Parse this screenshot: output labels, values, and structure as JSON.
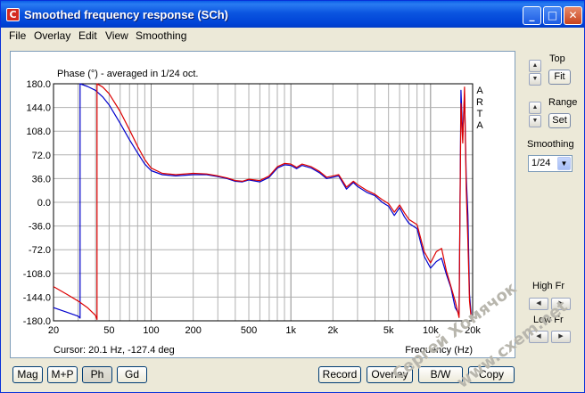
{
  "window": {
    "title": "Smoothed frequency response (SCh)",
    "icon_letter": "C",
    "minimize_glyph": "_",
    "maximize_glyph": "□",
    "close_glyph": "✕"
  },
  "menu": [
    "File",
    "Overlay",
    "Edit",
    "View",
    "Smoothing"
  ],
  "side_panel": {
    "top_label": "Top",
    "fit_button": "Fit",
    "range_label": "Range",
    "set_button": "Set",
    "smoothing_label": "Smoothing",
    "smoothing_value": "1/24",
    "high_fr_label": "High Fr",
    "low_fr_label": "Low Fr"
  },
  "bottom_buttons": {
    "left": [
      "Mag",
      "M+P",
      "Ph",
      "Gd"
    ],
    "right": [
      "Record",
      "Overlay",
      "B/W",
      "Copy"
    ],
    "active": "Ph"
  },
  "status": {
    "cursor": "Cursor: 20.1 Hz, -127.4 deg",
    "x_axis_label": "Frequency (Hz)"
  },
  "watermark": {
    "line1": "Сергей Хомячок",
    "line2": "www.cxem.net"
  },
  "chart_data": {
    "type": "line",
    "title": "Phase (°) - averaged in 1/24 oct.",
    "brand_letters": [
      "A",
      "R",
      "T",
      "A"
    ],
    "xlabel": "Frequency (Hz)",
    "ylabel": "",
    "x_scale": "log",
    "xlim": [
      20,
      20000
    ],
    "ylim": [
      -180,
      180
    ],
    "y_ticks": [
      "180.0",
      "144.0",
      "108.0",
      "72.0",
      "36.0",
      "0.0",
      "-36.0",
      "-72.0",
      "-108.0",
      "-144.0",
      "-180.0"
    ],
    "y_tick_values": [
      180,
      144,
      108,
      72,
      36,
      0,
      -36,
      -72,
      -108,
      -144,
      -180
    ],
    "x_ticks": [
      {
        "v": 20,
        "label": "20"
      },
      {
        "v": 50,
        "label": "50"
      },
      {
        "v": 100,
        "label": "100"
      },
      {
        "v": 200,
        "label": "200"
      },
      {
        "v": 500,
        "label": "500"
      },
      {
        "v": 1000,
        "label": "1k"
      },
      {
        "v": 2000,
        "label": "2k"
      },
      {
        "v": 5000,
        "label": "5k"
      },
      {
        "v": 10000,
        "label": "10k"
      },
      {
        "v": 20000,
        "label": "20k"
      }
    ],
    "grid": true,
    "colors": {
      "series_blue": "#0000cc",
      "series_red": "#dd0000",
      "grid": "#b0b0b0"
    },
    "series": [
      {
        "color": "#0000cc",
        "x": [
          20,
          25,
          30,
          31,
          31,
          35,
          40,
          45,
          50,
          60,
          70,
          80,
          90,
          100,
          120,
          150,
          200,
          250,
          300,
          350,
          400,
          450,
          500,
          600,
          700,
          800,
          900,
          1000,
          1100,
          1200,
          1400,
          1600,
          1800,
          2000,
          2200,
          2500,
          2800,
          3000,
          3500,
          4000,
          4500,
          5000,
          5500,
          6000,
          6500,
          7000,
          8000,
          9000,
          10000,
          11000,
          12000,
          13000,
          14000,
          15000,
          16000,
          16500,
          17000,
          17500,
          18000,
          18500,
          19000,
          19500
        ],
        "y": [
          -160,
          -167,
          -173,
          -176,
          180,
          176,
          170,
          160,
          148,
          120,
          95,
          75,
          58,
          48,
          42,
          40,
          42,
          42,
          39,
          36,
          32,
          31,
          34,
          31,
          38,
          52,
          57,
          56,
          51,
          56,
          52,
          45,
          36,
          38,
          40,
          20,
          30,
          24,
          15,
          10,
          0,
          -6,
          -20,
          -8,
          -22,
          -32,
          -40,
          -82,
          -100,
          -90,
          -85,
          -110,
          -130,
          -160,
          -170,
          170,
          100,
          165,
          40,
          -20,
          -140,
          -170
        ]
      },
      {
        "color": "#dd0000",
        "x": [
          20,
          25,
          30,
          35,
          40,
          41,
          41,
          45,
          50,
          60,
          70,
          80,
          90,
          100,
          120,
          150,
          200,
          250,
          300,
          350,
          400,
          450,
          500,
          600,
          700,
          800,
          900,
          1000,
          1100,
          1200,
          1400,
          1600,
          1800,
          2000,
          2200,
          2500,
          2800,
          3000,
          3500,
          4000,
          4500,
          5000,
          5500,
          6000,
          6500,
          7000,
          8000,
          9000,
          10000,
          11000,
          12000,
          13000,
          14000,
          15000,
          16000,
          16500,
          17000,
          17500,
          18000,
          18500,
          19000,
          19500
        ],
        "y": [
          -128,
          -140,
          -150,
          -160,
          -172,
          -178,
          180,
          175,
          165,
          138,
          110,
          85,
          65,
          52,
          44,
          42,
          44,
          43,
          40,
          37,
          33,
          32,
          35,
          33,
          40,
          54,
          59,
          58,
          53,
          58,
          54,
          47,
          38,
          40,
          42,
          23,
          32,
          27,
          18,
          12,
          4,
          -2,
          -15,
          -4,
          -16,
          -26,
          -34,
          -75,
          -92,
          -75,
          -70,
          -105,
          -128,
          -150,
          -175,
          150,
          90,
          175,
          20,
          -60,
          -150,
          -175
        ]
      }
    ]
  }
}
